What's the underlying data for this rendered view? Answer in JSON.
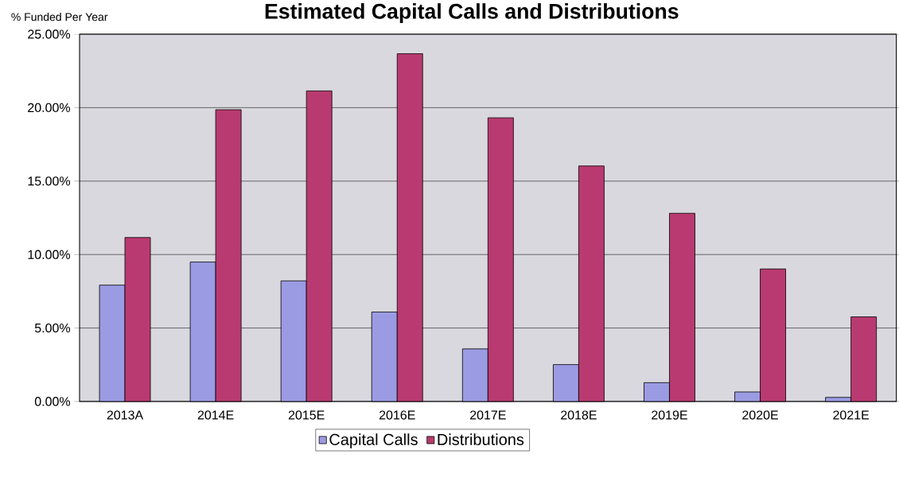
{
  "chart_data": {
    "type": "bar",
    "title": "Estimated Capital Calls and Distributions",
    "ylabel": "% Funded Per Year",
    "categories": [
      "2013A",
      "2014E",
      "2015E",
      "2016E",
      "2017E",
      "2018E",
      "2019E",
      "2020E",
      "2021E"
    ],
    "series": [
      {
        "name": "Capital Calls",
        "color": "#9b9be3",
        "values": [
          7.92,
          9.49,
          8.21,
          6.09,
          3.58,
          2.51,
          1.28,
          0.65,
          0.28
        ]
      },
      {
        "name": "Distributions",
        "color": "#b93a70",
        "values": [
          11.16,
          19.86,
          21.14,
          23.67,
          19.31,
          16.03,
          12.81,
          9.02,
          5.76
        ]
      }
    ],
    "ylim": [
      0,
      25
    ],
    "yticks": [
      {
        "value": 0,
        "label": "0.00%"
      },
      {
        "value": 5,
        "label": "5.00%"
      },
      {
        "value": 10,
        "label": "10.00%"
      },
      {
        "value": 15,
        "label": "15.00%"
      },
      {
        "value": 20,
        "label": "20.00%"
      },
      {
        "value": 25,
        "label": "25.00%"
      }
    ],
    "grid": "y",
    "legend": "bottom"
  }
}
